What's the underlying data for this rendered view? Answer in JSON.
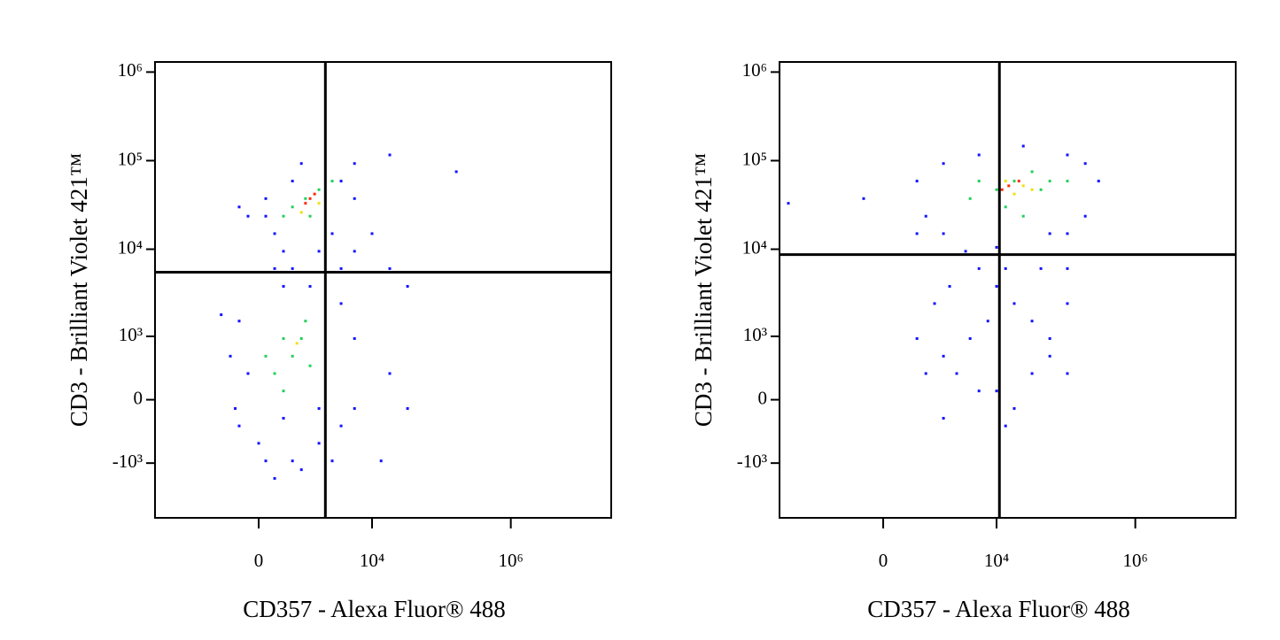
{
  "chart_data": [
    {
      "type": "scatter",
      "xlabel": "CD357 - Alexa Fluor® 488",
      "ylabel": "CD3 - Brilliant Violet 421™",
      "xlim": [
        -7250,
        28000000
      ],
      "ylim": [
        -4300,
        1300000
      ],
      "xticks": [
        0,
        {
          "value": 10000,
          "label": "10⁴"
        },
        {
          "value": 1000000,
          "label": "10⁶"
        }
      ],
      "yticks": [
        {
          "value": -1000,
          "label": "-10³"
        },
        0,
        {
          "value": 1000,
          "label": "10³"
        },
        {
          "value": 10000,
          "label": "10⁴"
        },
        {
          "value": 100000,
          "label": "10⁵"
        },
        {
          "value": 1000000,
          "label": "10⁶"
        }
      ],
      "quadrant_x": 2100,
      "quadrant_y": 5500,
      "series": [
        {
          "color": "#1414ff",
          "x": [
            110,
            258,
            427,
            637,
            902,
            3567,
            5580,
            2646,
            1687,
            110,
            -168,
            -323,
            5580,
            10000,
            18000,
            32500,
            18000,
            164000,
            258,
            637,
            1237,
            427,
            3567,
            5580,
            -323,
            -168,
            -323,
            0,
            110,
            637,
            1687,
            3567,
            5580,
            18000,
            32500,
            13500,
            5580,
            3567,
            -740,
            -505,
            -400,
            258,
            902,
            2646,
            1687,
            427
          ],
          "y": [
            23600,
            15000,
            9480,
            58800,
            92800,
            58800,
            37300,
            15000,
            9480,
            37300,
            23600,
            30000,
            92800,
            15000,
            6040,
            3800,
            116000,
            75000,
            6040,
            6040,
            3800,
            3800,
            6040,
            9480,
            1520,
            294,
            -294,
            -556,
            -940,
            -940,
            -556,
            -294,
            -92,
            294,
            -92,
            -940,
            940,
            2420,
            1800,
            556,
            -92,
            -1520,
            -1200,
            -940,
            -92,
            -200
          ]
        },
        {
          "color": "#22d05a",
          "x": [
            637,
            1050,
            1687,
            427,
            2646,
            1237,
            427,
            902,
            637,
            258,
            1050,
            110,
            427,
            1237
          ],
          "y": [
            30000,
            37300,
            47000,
            23600,
            58800,
            23600,
            940,
            940,
            556,
            294,
            1520,
            556,
            92,
            400
          ]
        },
        {
          "color": "#f0e010",
          "x": [
            902,
            1687,
            760
          ],
          "y": [
            26000,
            33000,
            820
          ]
        },
        {
          "color": "#ff2a10",
          "x": [
            1237,
            1050,
            1450
          ],
          "y": [
            37300,
            33000,
            42000
          ]
        }
      ]
    },
    {
      "type": "scatter",
      "xlabel": "CD357 - Alexa Fluor® 488",
      "ylabel": "CD3 - Brilliant Violet 421™",
      "xlim": [
        -7250,
        28000000
      ],
      "ylim": [
        -4300,
        1300000
      ],
      "xticks": [
        0,
        {
          "value": 10000,
          "label": "10⁴"
        },
        {
          "value": 1000000,
          "label": "10⁶"
        }
      ],
      "yticks": [
        {
          "value": -1000,
          "label": "-10³"
        },
        0,
        {
          "value": 1000,
          "label": "10³"
        },
        {
          "value": 10000,
          "label": "10⁴"
        },
        {
          "value": 100000,
          "label": "10⁵"
        },
        {
          "value": 1000000,
          "label": "10⁶"
        }
      ],
      "quadrant_x": 11000,
      "quadrant_y": 8700,
      "series": [
        {
          "color": "#1414ff",
          "x": [
            637,
            902,
            637,
            1687,
            5580,
            24300,
            105000,
            190000,
            296000,
            190000,
            105000,
            58600,
            1687,
            3567,
            -323,
            -5400,
            5580,
            10000,
            18000,
            32500,
            58600,
            105000,
            7500,
            4150,
            1687,
            2646,
            10000,
            18000,
            5580,
            32500,
            58600,
            105000,
            13500,
            1687,
            902,
            637,
            1237,
            2083,
            13500,
            43600,
            105000,
            10000
          ],
          "y": [
            58800,
            23600,
            15000,
            92800,
            116000,
            146000,
            116000,
            92800,
            58800,
            23600,
            15000,
            15000,
            15000,
            9480,
            37300,
            33000,
            6040,
            3800,
            2420,
            1520,
            940,
            2420,
            1520,
            940,
            556,
            294,
            92,
            -92,
            92,
            294,
            556,
            294,
            -294,
            -200,
            294,
            940,
            2420,
            3800,
            6040,
            6040,
            6040,
            10500
          ]
        },
        {
          "color": "#22d05a",
          "x": [
            10000,
            18000,
            32500,
            43600,
            5580,
            13500,
            58600,
            4150,
            24300,
            105000
          ],
          "y": [
            47000,
            58800,
            75000,
            47000,
            58800,
            30000,
            58800,
            37300,
            23600,
            58800
          ]
        },
        {
          "color": "#f0e010",
          "x": [
            13500,
            24300,
            32500,
            18000
          ],
          "y": [
            58800,
            52000,
            47000,
            42000
          ]
        },
        {
          "color": "#ff2a10",
          "x": [
            15000,
            21000,
            12000
          ],
          "y": [
            52000,
            58800,
            47000
          ]
        }
      ]
    }
  ]
}
